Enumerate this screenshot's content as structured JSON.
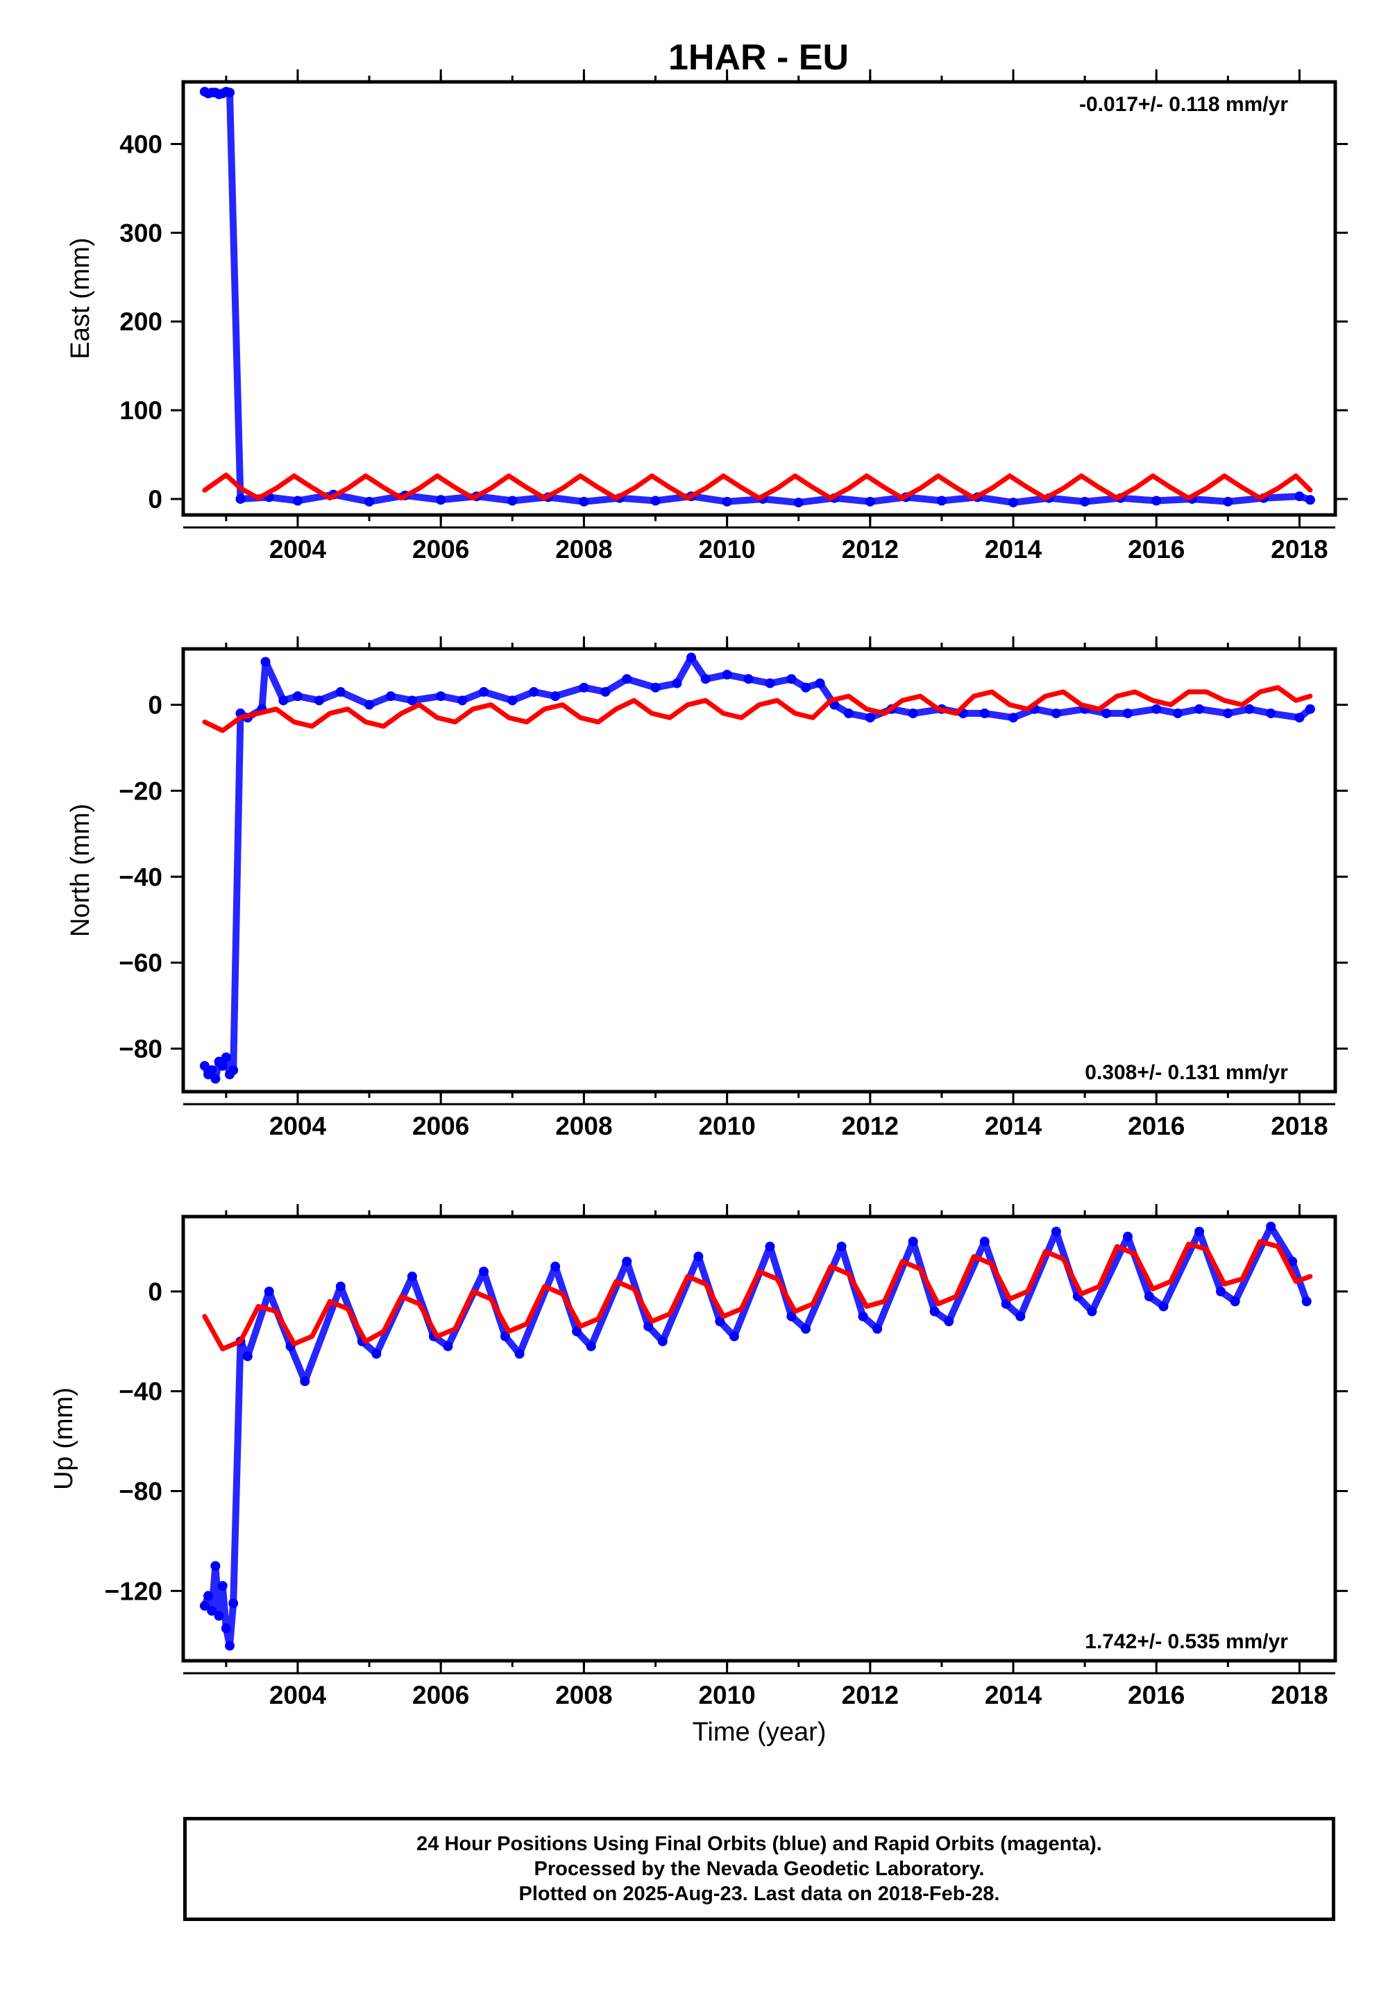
{
  "title": "1HAR - EU",
  "footer": {
    "line1": "24 Hour Positions Using Final Orbits (blue) and Rapid Orbits (magenta).",
    "line2": "Processed by the Nevada Geodetic Laboratory.",
    "line3": "Plotted on 2025-Aug-23. Last data on 2018-Feb-28."
  },
  "colors": {
    "observed": "#0000ff",
    "model": "#ff0000",
    "frame": "#000000"
  },
  "chart_data": [
    {
      "type": "scatter",
      "ylabel": "East (mm)",
      "xlabel": "",
      "rate_text": "-0.017+/- 0.118 mm/yr",
      "rate_position": "top-right",
      "xlim": [
        2002.4,
        2018.5
      ],
      "ylim": [
        -18,
        470
      ],
      "xticks": [
        2004,
        2006,
        2008,
        2010,
        2012,
        2014,
        2016,
        2018
      ],
      "xtick_labels": [
        "2004",
        "2006",
        "2008",
        "2010",
        "2012",
        "2014",
        "2016",
        "2018"
      ],
      "yticks": [
        0,
        100,
        200,
        300,
        400
      ],
      "ytick_labels": [
        "0",
        "100",
        "200",
        "300",
        "400"
      ],
      "grid": false,
      "series": [
        {
          "kind": "points",
          "x": [
            2002.7,
            2002.75,
            2002.8,
            2002.85,
            2002.9,
            2002.95,
            2003.0,
            2003.05,
            2003.2,
            2003.6,
            2004.0,
            2004.5,
            2005.0,
            2005.5,
            2006.0,
            2006.5,
            2007.0,
            2007.5,
            2008.0,
            2008.5,
            2009.0,
            2009.5,
            2010.0,
            2010.5,
            2011.0,
            2011.5,
            2012.0,
            2012.5,
            2013.0,
            2013.5,
            2014.0,
            2014.5,
            2015.0,
            2015.5,
            2016.0,
            2016.5,
            2017.0,
            2017.5,
            2018.0,
            2018.15
          ],
          "y": [
            459,
            457,
            458,
            458,
            456,
            457,
            459,
            458,
            0,
            2,
            -2,
            5,
            -3,
            4,
            -1,
            3,
            -2,
            2,
            -3,
            1,
            -2,
            3,
            -3,
            0,
            -4,
            1,
            -3,
            2,
            -2,
            2,
            -4,
            1,
            -3,
            1,
            -2,
            0,
            -3,
            1,
            3,
            -1
          ]
        },
        {
          "kind": "model",
          "x": [
            2002.7,
            2003.0,
            2003.2,
            2003.45,
            2003.7,
            2003.95,
            2004.2,
            2004.45,
            2004.7,
            2004.95,
            2005.2,
            2005.45,
            2005.7,
            2005.95,
            2006.2,
            2006.45,
            2006.7,
            2006.95,
            2007.2,
            2007.45,
            2007.7,
            2007.95,
            2008.2,
            2008.45,
            2008.7,
            2008.95,
            2009.2,
            2009.45,
            2009.7,
            2009.95,
            2010.2,
            2010.45,
            2010.7,
            2010.95,
            2011.2,
            2011.45,
            2011.7,
            2011.95,
            2012.2,
            2012.45,
            2012.7,
            2012.95,
            2013.2,
            2013.45,
            2013.7,
            2013.95,
            2014.2,
            2014.45,
            2014.7,
            2014.95,
            2015.2,
            2015.45,
            2015.7,
            2015.95,
            2016.2,
            2016.45,
            2016.7,
            2016.95,
            2017.2,
            2017.45,
            2017.7,
            2017.95,
            2018.15
          ],
          "y": [
            10,
            27,
            12,
            1,
            12,
            26,
            13,
            1,
            12,
            26,
            13,
            1,
            12,
            26,
            13,
            1,
            12,
            26,
            13,
            1,
            12,
            26,
            13,
            1,
            12,
            26,
            13,
            1,
            12,
            26,
            13,
            1,
            12,
            26,
            13,
            1,
            12,
            26,
            13,
            1,
            12,
            26,
            13,
            1,
            12,
            26,
            13,
            1,
            12,
            26,
            13,
            1,
            12,
            26,
            13,
            1,
            12,
            26,
            13,
            1,
            12,
            26,
            10
          ]
        }
      ]
    },
    {
      "type": "scatter",
      "ylabel": "North (mm)",
      "xlabel": "",
      "rate_text": "0.308+/- 0.131 mm/yr",
      "rate_position": "bottom-right",
      "xlim": [
        2002.4,
        2018.5
      ],
      "ylim": [
        -90,
        13
      ],
      "xticks": [
        2004,
        2006,
        2008,
        2010,
        2012,
        2014,
        2016,
        2018
      ],
      "xtick_labels": [
        "2004",
        "2006",
        "2008",
        "2010",
        "2012",
        "2014",
        "2016",
        "2018"
      ],
      "yticks": [
        0,
        -20,
        -40,
        -60,
        -80
      ],
      "ytick_labels": [
        "0",
        "−20",
        "−40",
        "−60",
        "−80"
      ],
      "grid": false,
      "series": [
        {
          "kind": "points",
          "x": [
            2002.7,
            2002.75,
            2002.8,
            2002.85,
            2002.9,
            2002.95,
            2003.0,
            2003.05,
            2003.1,
            2003.2,
            2003.3,
            2003.5,
            2003.55,
            2003.8,
            2004.0,
            2004.3,
            2004.6,
            2005.0,
            2005.3,
            2005.6,
            2006.0,
            2006.3,
            2006.6,
            2007.0,
            2007.3,
            2007.6,
            2008.0,
            2008.3,
            2008.6,
            2009.0,
            2009.3,
            2009.5,
            2009.7,
            2010.0,
            2010.3,
            2010.6,
            2010.9,
            2011.1,
            2011.3,
            2011.5,
            2011.7,
            2012.0,
            2012.3,
            2012.6,
            2013.0,
            2013.3,
            2013.6,
            2014.0,
            2014.3,
            2014.6,
            2015.0,
            2015.3,
            2015.6,
            2016.0,
            2016.3,
            2016.6,
            2017.0,
            2017.3,
            2017.6,
            2018.0,
            2018.15
          ],
          "y": [
            -84,
            -86,
            -85,
            -87,
            -83,
            -84,
            -82,
            -86,
            -85,
            -2,
            -3,
            -1,
            10,
            1,
            2,
            1,
            3,
            0,
            2,
            1,
            2,
            1,
            3,
            1,
            3,
            2,
            4,
            3,
            6,
            4,
            5,
            11,
            6,
            7,
            6,
            5,
            6,
            4,
            5,
            0,
            -2,
            -3,
            -1,
            -2,
            -1,
            -2,
            -2,
            -3,
            -1,
            -2,
            -1,
            -2,
            -2,
            -1,
            -2,
            -1,
            -2,
            -1,
            -2,
            -3,
            -1
          ]
        },
        {
          "kind": "model",
          "x": [
            2002.7,
            2002.95,
            2003.2,
            2003.45,
            2003.7,
            2003.95,
            2004.2,
            2004.45,
            2004.7,
            2004.95,
            2005.2,
            2005.45,
            2005.7,
            2005.95,
            2006.2,
            2006.45,
            2006.7,
            2006.95,
            2007.2,
            2007.45,
            2007.7,
            2007.95,
            2008.2,
            2008.45,
            2008.7,
            2008.95,
            2009.2,
            2009.45,
            2009.7,
            2009.95,
            2010.2,
            2010.45,
            2010.7,
            2010.95,
            2011.2,
            2011.45,
            2011.7,
            2011.95,
            2012.2,
            2012.45,
            2012.7,
            2012.95,
            2013.2,
            2013.45,
            2013.7,
            2013.95,
            2014.2,
            2014.45,
            2014.7,
            2014.95,
            2015.2,
            2015.45,
            2015.7,
            2015.95,
            2016.2,
            2016.45,
            2016.7,
            2016.95,
            2017.2,
            2017.45,
            2017.7,
            2017.95,
            2018.15
          ],
          "y": [
            -4,
            -6,
            -3,
            -2,
            -1,
            -4,
            -5,
            -2,
            -1,
            -4,
            -5,
            -2,
            0,
            -3,
            -4,
            -1,
            0,
            -3,
            -4,
            -1,
            0,
            -3,
            -4,
            -1,
            1,
            -2,
            -3,
            0,
            1,
            -2,
            -3,
            0,
            1,
            -2,
            -3,
            1,
            2,
            -1,
            -2,
            1,
            2,
            -1,
            -2,
            2,
            3,
            0,
            -1,
            2,
            3,
            0,
            -1,
            2,
            3,
            1,
            0,
            3,
            3,
            1,
            0,
            3,
            4,
            1,
            2
          ]
        }
      ]
    },
    {
      "type": "scatter",
      "ylabel": "Up (mm)",
      "xlabel": "Time (year)",
      "rate_text": "1.742+/- 0.535 mm/yr",
      "rate_position": "bottom-right",
      "xlim": [
        2002.4,
        2018.5
      ],
      "ylim": [
        -148,
        30
      ],
      "xticks": [
        2004,
        2006,
        2008,
        2010,
        2012,
        2014,
        2016,
        2018
      ],
      "xtick_labels": [
        "2004",
        "2006",
        "2008",
        "2010",
        "2012",
        "2014",
        "2016",
        "2018"
      ],
      "yticks": [
        0,
        -40,
        -80,
        -120
      ],
      "ytick_labels": [
        "0",
        "−40",
        "−80",
        "−120"
      ],
      "grid": false,
      "series": [
        {
          "kind": "points",
          "x": [
            2002.7,
            2002.75,
            2002.8,
            2002.85,
            2002.9,
            2002.95,
            2003.0,
            2003.05,
            2003.1,
            2003.2,
            2003.3,
            2003.6,
            2003.9,
            2004.1,
            2004.6,
            2004.9,
            2005.1,
            2005.6,
            2005.9,
            2006.1,
            2006.6,
            2006.9,
            2007.1,
            2007.6,
            2007.9,
            2008.1,
            2008.6,
            2008.9,
            2009.1,
            2009.6,
            2009.9,
            2010.1,
            2010.6,
            2010.9,
            2011.1,
            2011.6,
            2011.9,
            2012.1,
            2012.6,
            2012.9,
            2013.1,
            2013.6,
            2013.9,
            2014.1,
            2014.6,
            2014.9,
            2015.1,
            2015.6,
            2015.9,
            2016.1,
            2016.6,
            2016.9,
            2017.1,
            2017.6,
            2017.9,
            2018.1
          ],
          "y": [
            -126,
            -122,
            -128,
            -110,
            -130,
            -118,
            -135,
            -142,
            -125,
            -20,
            -26,
            0,
            -22,
            -36,
            2,
            -20,
            -25,
            6,
            -18,
            -22,
            8,
            -18,
            -25,
            10,
            -16,
            -22,
            12,
            -14,
            -20,
            14,
            -12,
            -18,
            18,
            -10,
            -15,
            18,
            -10,
            -15,
            20,
            -8,
            -12,
            20,
            -5,
            -10,
            24,
            -2,
            -8,
            22,
            -2,
            -6,
            24,
            0,
            -4,
            26,
            12,
            -4
          ]
        },
        {
          "kind": "model",
          "x": [
            2002.7,
            2002.95,
            2003.2,
            2003.45,
            2003.7,
            2003.95,
            2004.2,
            2004.45,
            2004.7,
            2004.95,
            2005.2,
            2005.45,
            2005.7,
            2005.95,
            2006.2,
            2006.45,
            2006.7,
            2006.95,
            2007.2,
            2007.45,
            2007.7,
            2007.95,
            2008.2,
            2008.45,
            2008.7,
            2008.95,
            2009.2,
            2009.45,
            2009.7,
            2009.95,
            2010.2,
            2010.45,
            2010.7,
            2010.95,
            2011.2,
            2011.45,
            2011.7,
            2011.95,
            2012.2,
            2012.45,
            2012.7,
            2012.95,
            2013.2,
            2013.45,
            2013.7,
            2013.95,
            2014.2,
            2014.45,
            2014.7,
            2014.95,
            2015.2,
            2015.45,
            2015.7,
            2015.95,
            2016.2,
            2016.45,
            2016.7,
            2016.95,
            2017.2,
            2017.45,
            2017.7,
            2017.95,
            2018.15
          ],
          "y": [
            -10,
            -23,
            -20,
            -6,
            -8,
            -21,
            -18,
            -4,
            -7,
            -20,
            -16,
            -2,
            -5,
            -18,
            -15,
            0,
            -3,
            -16,
            -13,
            2,
            -1,
            -14,
            -11,
            4,
            1,
            -12,
            -9,
            6,
            3,
            -10,
            -7,
            8,
            5,
            -8,
            -5,
            10,
            7,
            -6,
            -4,
            12,
            9,
            -5,
            -2,
            14,
            11,
            -3,
            0,
            16,
            13,
            -1,
            2,
            18,
            15,
            1,
            4,
            19,
            17,
            3,
            5,
            20,
            18,
            4,
            6
          ]
        }
      ]
    }
  ]
}
